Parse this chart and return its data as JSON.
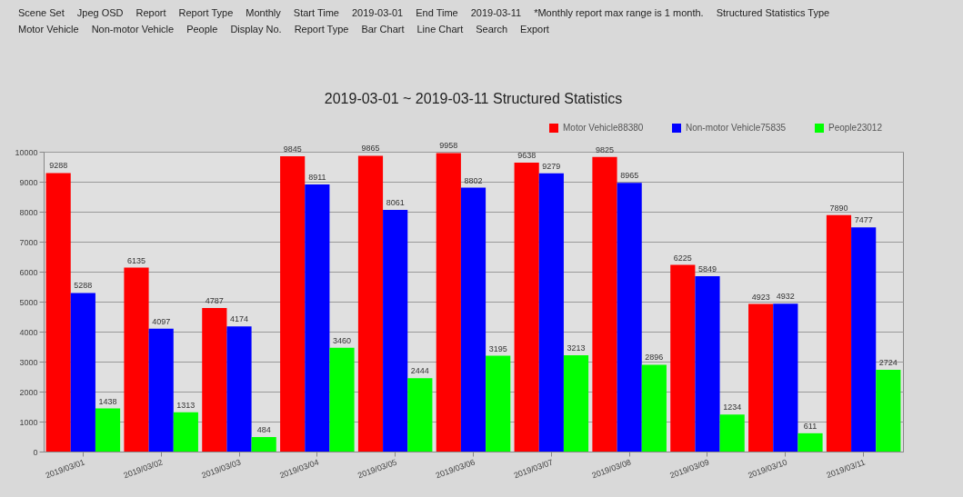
{
  "chart_data": {
    "type": "bar",
    "title": "2019-03-01 ~ 2019-03-11 Structured Statistics",
    "annotations": [
      "Scene Set",
      "Jpeg OSD",
      "Report",
      "Report Type",
      "Monthly",
      "Start Time",
      "2019-03-01",
      "End Time",
      "2019-03-11",
      "*Monthly report max range is 1 month.",
      "Structured Statistics Type",
      "Motor Vehicle",
      "Non-motor Vehicle",
      "People",
      "Display No.",
      "Report Type",
      "Bar Chart",
      "Line Chart",
      "Search",
      "Export"
    ],
    "categories": [
      "2019/03/01",
      "2019/03/02",
      "2019/03/03",
      "2019/03/04",
      "2019/03/05",
      "2019/03/06",
      "2019/03/07",
      "2019/03/08",
      "2019/03/09",
      "2019/03/10",
      "2019/03/11"
    ],
    "series": [
      {
        "name": "Motor Vehicle88380",
        "color": "#ff0000",
        "values": [
          9288,
          6135,
          4787,
          9845,
          9865,
          9958,
          9638,
          9825,
          6225,
          4923,
          7890
        ]
      },
      {
        "name": "Non-motor Vehicle75835",
        "color": "#0000ff",
        "values": [
          5288,
          4097,
          4174,
          8911,
          8061,
          8802,
          9279,
          8965,
          5849,
          4932,
          7477
        ]
      },
      {
        "name": "People23012",
        "color": "#00ff00",
        "values": [
          1438,
          1313,
          484,
          3460,
          2444,
          3195,
          3213,
          2896,
          1234,
          611,
          2724
        ]
      }
    ],
    "ylim": [
      0,
      10000
    ],
    "yticks": [
      0,
      1000,
      2000,
      3000,
      4000,
      5000,
      6000,
      7000,
      8000,
      9000,
      10000
    ],
    "grid": "y",
    "legend": "top right",
    "data_labels": true
  }
}
